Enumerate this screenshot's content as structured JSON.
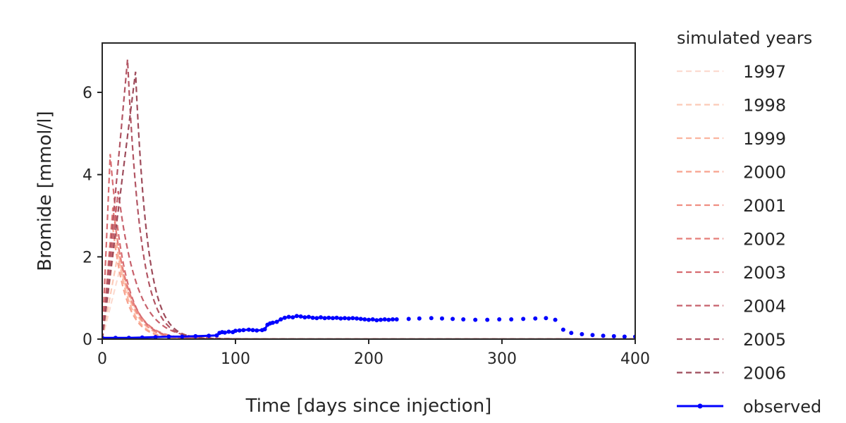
{
  "chart_data": {
    "type": "line",
    "xlabel": "Time [days since injection]",
    "ylabel": "Bromide [mmol/l]",
    "xlim": [
      0,
      400
    ],
    "ylim": [
      0,
      7.2
    ],
    "xticks": [
      0,
      100,
      200,
      300,
      400
    ],
    "yticks": [
      0,
      2,
      4,
      6
    ],
    "grid": false,
    "legend": {
      "title": "simulated years",
      "placement": "outside-right"
    },
    "series": [
      {
        "name": "1997",
        "style": "dashed",
        "color": "#fcdbd0",
        "peak_x": 14,
        "peak_y": 1.8,
        "decay": 12
      },
      {
        "name": "1998",
        "style": "dashed",
        "color": "#fcc9b6",
        "peak_x": 12,
        "peak_y": 2.1,
        "decay": 11
      },
      {
        "name": "1999",
        "style": "dashed",
        "color": "#fbb59f",
        "peak_x": 10,
        "peak_y": 2.5,
        "decay": 10
      },
      {
        "name": "2000",
        "style": "dashed",
        "color": "#f7a28e",
        "peak_x": 8,
        "peak_y": 2.7,
        "decay": 10
      },
      {
        "name": "2001",
        "style": "dashed",
        "color": "#f08f82",
        "peak_x": 9,
        "peak_y": 3.0,
        "decay": 11
      },
      {
        "name": "2002",
        "style": "dashed",
        "color": "#e57d78",
        "peak_x": 8,
        "peak_y": 3.2,
        "decay": 12
      },
      {
        "name": "2003",
        "style": "dashed",
        "color": "#d76c71",
        "peak_x": 6,
        "peak_y": 4.5,
        "decay": 11
      },
      {
        "name": "2004",
        "style": "dashed",
        "color": "#c7606b",
        "peak_x": 12,
        "peak_y": 3.6,
        "decay": 14
      },
      {
        "name": "2005",
        "style": "dashed",
        "color": "#b25563",
        "peak_x": 19,
        "peak_y": 6.8,
        "decay": 10
      },
      {
        "name": "2006",
        "style": "dashed",
        "color": "#9d4b5a",
        "peak_x": 25,
        "peak_y": 6.5,
        "decay": 9
      },
      {
        "name": "observed",
        "style": "solid-markers",
        "color": "#0000ff",
        "x": [
          0,
          10,
          20,
          30,
          40,
          50,
          60,
          70,
          80,
          86,
          88,
          90,
          92,
          95,
          98,
          100,
          103,
          106,
          110,
          113,
          116,
          120,
          122,
          124,
          126,
          128,
          131,
          134,
          137,
          140,
          143,
          146,
          149,
          152,
          155,
          158,
          161,
          164,
          167,
          170,
          173,
          176,
          179,
          182,
          185,
          188,
          191,
          194,
          197,
          200,
          203,
          206,
          209,
          212,
          215,
          218,
          221,
          230,
          238,
          247,
          255,
          263,
          271,
          280,
          289,
          298,
          307,
          316,
          325,
          333,
          340,
          346,
          352,
          360,
          368,
          376,
          384,
          392,
          400
        ],
        "y": [
          0.03,
          0.03,
          0.03,
          0.04,
          0.05,
          0.06,
          0.06,
          0.07,
          0.08,
          0.09,
          0.15,
          0.17,
          0.16,
          0.18,
          0.17,
          0.2,
          0.21,
          0.22,
          0.23,
          0.22,
          0.21,
          0.22,
          0.24,
          0.35,
          0.38,
          0.4,
          0.42,
          0.48,
          0.52,
          0.54,
          0.53,
          0.56,
          0.55,
          0.53,
          0.54,
          0.52,
          0.51,
          0.53,
          0.51,
          0.52,
          0.51,
          0.52,
          0.5,
          0.51,
          0.5,
          0.51,
          0.5,
          0.49,
          0.48,
          0.47,
          0.48,
          0.46,
          0.47,
          0.48,
          0.47,
          0.48,
          0.48,
          0.49,
          0.5,
          0.51,
          0.5,
          0.49,
          0.48,
          0.47,
          0.47,
          0.48,
          0.48,
          0.49,
          0.5,
          0.51,
          0.47,
          0.23,
          0.15,
          0.12,
          0.1,
          0.08,
          0.07,
          0.06,
          0.06
        ]
      }
    ]
  }
}
